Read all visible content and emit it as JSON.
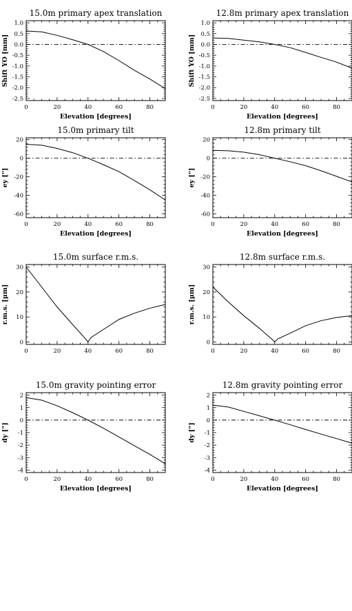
{
  "chart_data": [
    {
      "type": "line",
      "title": "15.0m primary apex translation",
      "xlabel": "Elevation [degrees]",
      "ylabel": "Shift YO [mm]",
      "xlim": [
        0,
        90
      ],
      "ylim": [
        -2.6,
        1.1
      ],
      "xticks": [
        0,
        20,
        40,
        60,
        80
      ],
      "yticks": [
        1.0,
        0.5,
        0.0,
        -0.5,
        -1.0,
        -1.5,
        -2.0,
        -2.5
      ],
      "ytick_labels": [
        "1.0",
        "0.5",
        "0.0",
        "-0.5",
        "-1.0",
        "-1.5",
        "-2.0",
        "-2.5"
      ],
      "reference_y": 0,
      "series": [
        {
          "x": [
            0,
            10,
            20,
            30,
            40,
            50,
            60,
            70,
            80,
            90
          ],
          "y": [
            0.62,
            0.58,
            0.42,
            0.22,
            0.0,
            -0.33,
            -0.75,
            -1.2,
            -1.6,
            -2.05
          ]
        }
      ]
    },
    {
      "type": "line",
      "title": "12.8m primary apex translation",
      "xlabel": "Elevation [degrees]",
      "ylabel": "Shift YO [mm]",
      "xlim": [
        0,
        90
      ],
      "ylim": [
        -2.6,
        1.1
      ],
      "xticks": [
        0,
        20,
        40,
        60,
        80
      ],
      "yticks": [
        1.0,
        0.5,
        0.0,
        -0.5,
        -1.0,
        -1.5,
        -2.0,
        -2.5
      ],
      "ytick_labels": [
        "1.0",
        "0.5",
        "0.0",
        "-0.5",
        "-1.0",
        "-1.5",
        "-2.0",
        "-2.5"
      ],
      "reference_y": 0,
      "series": [
        {
          "x": [
            0,
            10,
            20,
            30,
            40,
            50,
            60,
            70,
            80,
            90
          ],
          "y": [
            0.3,
            0.28,
            0.2,
            0.12,
            0.0,
            -0.15,
            -0.37,
            -0.6,
            -0.82,
            -1.1
          ]
        }
      ]
    },
    {
      "type": "line",
      "title": "15.0m primary tilt",
      "xlabel": "Elevation [degrees]",
      "ylabel": "ey [\"]",
      "xlim": [
        0,
        90
      ],
      "ylim": [
        -64,
        22
      ],
      "xticks": [
        0,
        20,
        40,
        60,
        80
      ],
      "yticks": [
        20,
        0,
        -20,
        -40,
        -60
      ],
      "ytick_labels": [
        "20",
        "0",
        "-20",
        "-40",
        "-60"
      ],
      "reference_y": 0,
      "series": [
        {
          "x": [
            0,
            10,
            20,
            30,
            40,
            50,
            60,
            70,
            80,
            90
          ],
          "y": [
            15,
            14,
            10.5,
            6,
            0,
            -7,
            -14.5,
            -24,
            -34,
            -45
          ]
        }
      ]
    },
    {
      "type": "line",
      "title": "12.8m primary tilt",
      "xlabel": "Elevation [degrees]",
      "ylabel": "ey [\"]",
      "xlim": [
        0,
        90
      ],
      "ylim": [
        -64,
        22
      ],
      "xticks": [
        0,
        20,
        40,
        60,
        80
      ],
      "yticks": [
        20,
        0,
        -20,
        -40,
        -60
      ],
      "ytick_labels": [
        "20",
        "0",
        "-20",
        "-40",
        "-60"
      ],
      "reference_y": 0,
      "series": [
        {
          "x": [
            0,
            10,
            20,
            30,
            40,
            50,
            60,
            70,
            80,
            90
          ],
          "y": [
            8.5,
            8,
            6.5,
            3.8,
            0,
            -3.8,
            -8,
            -13.5,
            -19.5,
            -25.5
          ]
        }
      ]
    },
    {
      "type": "line",
      "title": "15.0m surface r.m.s.",
      "xlabel": "",
      "ylabel": "r.m.s. [μm]",
      "xlim": [
        0,
        90
      ],
      "ylim": [
        -1,
        31
      ],
      "xticks": [
        0,
        20,
        40,
        60,
        80
      ],
      "yticks": [
        0,
        10,
        20,
        30
      ],
      "ytick_labels": [
        "0",
        "10",
        "20",
        "30"
      ],
      "reference_y": null,
      "series": [
        {
          "x": [
            0,
            10,
            20,
            30,
            38,
            40,
            42,
            50,
            60,
            70,
            80,
            90
          ],
          "y": [
            30,
            22,
            14,
            7,
            1.5,
            0,
            1.8,
            5,
            9,
            11.5,
            13.5,
            15
          ]
        }
      ]
    },
    {
      "type": "line",
      "title": "12.8m surface r.m.s.",
      "xlabel": "",
      "ylabel": "r.m.s. [μm]",
      "xlim": [
        0,
        90
      ],
      "ylim": [
        -1,
        31
      ],
      "xticks": [
        0,
        20,
        40,
        60,
        80
      ],
      "yticks": [
        0,
        10,
        20,
        30
      ],
      "ytick_labels": [
        "0",
        "10",
        "20",
        "30"
      ],
      "reference_y": null,
      "series": [
        {
          "x": [
            0,
            10,
            20,
            30,
            38,
            40,
            42,
            50,
            60,
            70,
            80,
            90
          ],
          "y": [
            22,
            16,
            10.5,
            5.5,
            1.2,
            0,
            1.2,
            3.5,
            6.5,
            8.5,
            9.8,
            10.5
          ]
        }
      ]
    },
    {
      "type": "line",
      "title": "15.0m gravity pointing error",
      "xlabel": "Elevation [degrees]",
      "ylabel": "dy [\"]",
      "xlim": [
        0,
        90
      ],
      "ylim": [
        -4.2,
        2.2
      ],
      "xticks": [
        0,
        20,
        40,
        60,
        80
      ],
      "yticks": [
        2,
        1,
        0,
        -1,
        -2,
        -3,
        -4
      ],
      "ytick_labels": [
        "2",
        "1",
        "0",
        "-1",
        "-2",
        "-3",
        "-4"
      ],
      "reference_y": 0,
      "series": [
        {
          "x": [
            0,
            10,
            20,
            30,
            40,
            50,
            60,
            70,
            80,
            90
          ],
          "y": [
            1.8,
            1.6,
            1.15,
            0.6,
            0.0,
            -0.65,
            -1.35,
            -2.05,
            -2.75,
            -3.5
          ]
        }
      ]
    },
    {
      "type": "line",
      "title": "12.8m gravity pointing error",
      "xlabel": "Elevation [degrees]",
      "ylabel": "dy [\"]",
      "xlim": [
        0,
        90
      ],
      "ylim": [
        -4.2,
        2.2
      ],
      "xticks": [
        0,
        20,
        40,
        60,
        80
      ],
      "yticks": [
        2,
        1,
        0,
        -1,
        -2,
        -3,
        -4
      ],
      "ytick_labels": [
        "2",
        "1",
        "0",
        "-1",
        "-2",
        "-3",
        "-4"
      ],
      "reference_y": 0,
      "series": [
        {
          "x": [
            0,
            10,
            20,
            30,
            40,
            50,
            60,
            70,
            80,
            90
          ],
          "y": [
            1.2,
            1.05,
            0.7,
            0.35,
            0.0,
            -0.37,
            -0.75,
            -1.12,
            -1.48,
            -1.85
          ]
        }
      ]
    }
  ]
}
